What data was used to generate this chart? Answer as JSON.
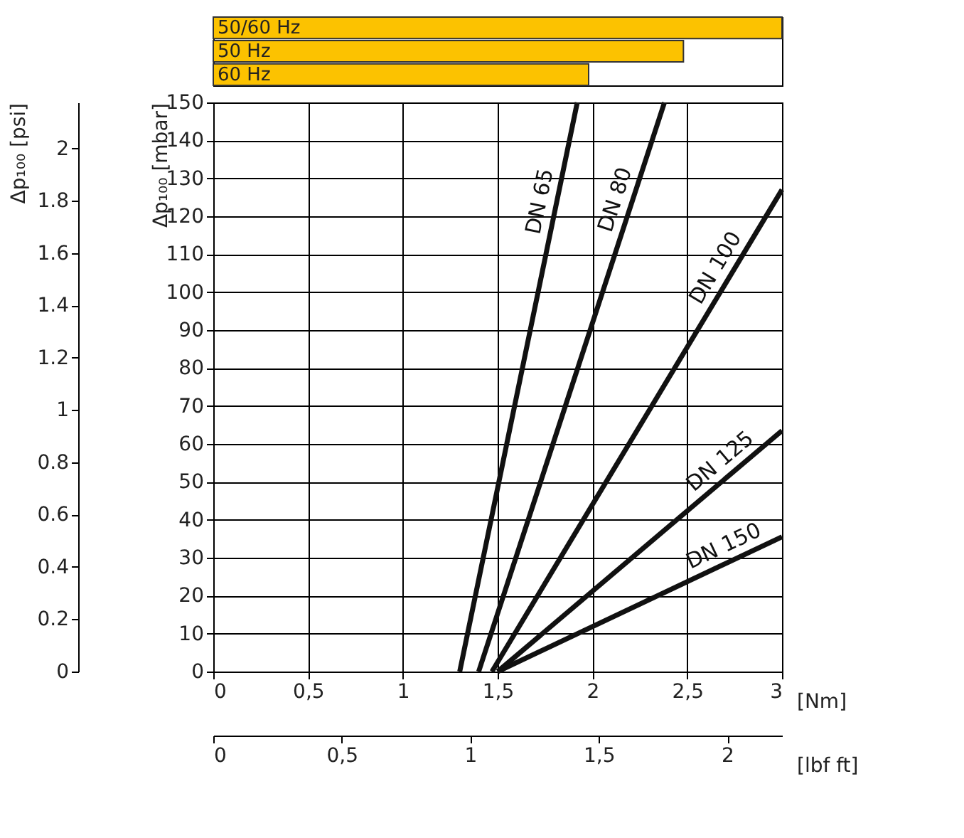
{
  "chart_data": [
    {
      "type": "bar",
      "orientation": "horizontal",
      "categories": [
        "50/60 Hz",
        "50 Hz",
        "60 Hz"
      ],
      "values": [
        3,
        2.48,
        1.98
      ],
      "color": "#fcc200",
      "xlim": [
        0,
        3
      ],
      "tick_labels": false,
      "grid": false
    },
    {
      "type": "line",
      "xlabel": "[Nm]",
      "ylabel": "Δp₁₀₀ [mbar]",
      "y2label": "Δp₁₀₀ [psi]",
      "x2label": "[lbf ft]",
      "xlim": [
        0,
        3
      ],
      "xticks": [
        0,
        {
          "value": 0.5,
          "label": "0,5"
        },
        1,
        {
          "value": 1.5,
          "label": "1,5"
        },
        2,
        {
          "value": 2.5,
          "label": "2,5"
        },
        3
      ],
      "x2lim": [
        0,
        2.213
      ],
      "x2ticks": [
        0,
        {
          "value": 0.5,
          "label": "0,5"
        },
        1,
        {
          "value": 1.5,
          "label": "1,5"
        },
        2
      ],
      "ylim": [
        0,
        150
      ],
      "yticks": [
        0,
        10,
        20,
        30,
        40,
        50,
        60,
        70,
        80,
        90,
        100,
        110,
        120,
        130,
        140,
        150
      ],
      "y2lim": [
        0,
        2.176
      ],
      "y2ticks": [
        0,
        0.2,
        0.4,
        0.6,
        0.8,
        1,
        1.2,
        1.4,
        1.6,
        1.8,
        2
      ],
      "grid": true,
      "legend": false,
      "marker": "none",
      "line_style": "solid",
      "series": [
        {
          "name": "DN 65",
          "color": "#111111",
          "x": [
            1.3,
            1.92
          ],
          "values": [
            0,
            150
          ]
        },
        {
          "name": "DN 80",
          "color": "#111111",
          "x": [
            1.4,
            2.38
          ],
          "values": [
            0,
            150
          ]
        },
        {
          "name": "DN 100",
          "color": "#111111",
          "x": [
            1.47,
            3
          ],
          "values": [
            0,
            127
          ]
        },
        {
          "name": "DN 125",
          "color": "#111111",
          "x": [
            1.5,
            3
          ],
          "values": [
            0,
            63.5
          ]
        },
        {
          "name": "DN 150",
          "color": "#111111",
          "x": [
            1.5,
            3
          ],
          "values": [
            0,
            35.5
          ]
        }
      ]
    }
  ]
}
